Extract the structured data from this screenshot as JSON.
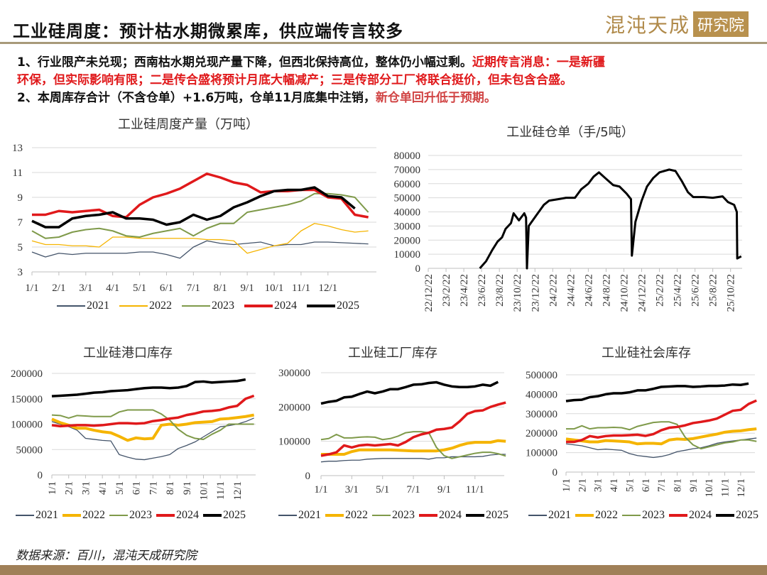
{
  "header": {
    "title": "工业硅周度：预计枯水期微累库，供应端传言较多",
    "logo_main": "混沌天成",
    "logo_box": "研究院"
  },
  "bullets": {
    "l1_black": "1、行业限产未兑现；西南枯水期兑现产量下降，但西北保持高位，整体仍小幅过剩。",
    "l1_red": "近期传言消息：一是新疆",
    "l2_red": "环保，但实际影响有限；二是传合盛将预计月底大幅减产；三是传部分工厂将联合挺价，但未包含合盛。",
    "l3_black": "2、本周库存合计（不含仓单）+1.6万吨，仓单11月底集中注销，",
    "l3_red": "新仓单回升低于预期。"
  },
  "footer": {
    "source": "数据来源：百川，混沌天成研究院"
  },
  "colors": {
    "2021": "#44546a",
    "2022": "#f5b400",
    "2023": "#7f9a4a",
    "2024": "#e0191b",
    "2025": "#000000"
  },
  "chart_data": [
    {
      "id": "c1",
      "type": "line",
      "title": "工业硅周度产量（万吨）",
      "ylim": [
        3,
        13
      ],
      "yticks": [
        "13",
        "11",
        "9",
        "7",
        "5",
        "3"
      ],
      "xticks": [
        "1/1",
        "2/1",
        "3/1",
        "4/1",
        "5/1",
        "6/1",
        "7/1",
        "8/1",
        "9/1",
        "10/1",
        "11/1",
        "12/1"
      ],
      "x_start": 0,
      "x_step": 0.5,
      "series": [
        {
          "name": "2021",
          "values": [
            4.6,
            4.2,
            4.5,
            4.4,
            4.5,
            4.5,
            4.5,
            4.5,
            4.6,
            4.6,
            4.4,
            4.1,
            5.0,
            5.5,
            5.3,
            5.2,
            5.3,
            5.4,
            5.1,
            5.2,
            5.2,
            5.4,
            5.4,
            5.35,
            5.3,
            5.25
          ]
        },
        {
          "name": "2022",
          "values": [
            5.5,
            5.2,
            5.2,
            5.1,
            5.1,
            5.0,
            5.8,
            5.8,
            5.7,
            5.7,
            5.7,
            5.7,
            5.7,
            5.6,
            5.6,
            5.5,
            4.5,
            4.8,
            5.1,
            5.3,
            6.3,
            6.9,
            6.7,
            6.4,
            6.2,
            6.3
          ]
        },
        {
          "name": "2023",
          "values": [
            6.3,
            5.7,
            5.8,
            6.2,
            6.4,
            6.5,
            6.3,
            5.9,
            5.8,
            6.1,
            6.3,
            6.5,
            5.9,
            6.5,
            6.9,
            6.9,
            7.8,
            8.0,
            8.2,
            8.4,
            8.7,
            9.3,
            9.3,
            9.2,
            9.0,
            7.8
          ]
        },
        {
          "name": "2024",
          "values": [
            7.6,
            7.6,
            7.9,
            7.8,
            7.9,
            8.0,
            7.5,
            7.4,
            8.4,
            9.0,
            9.3,
            9.7,
            10.3,
            10.9,
            10.6,
            10.2,
            10.0,
            9.4,
            9.5,
            9.5,
            9.6,
            9.6,
            9.0,
            8.9,
            7.6,
            7.4
          ]
        },
        {
          "name": "2025",
          "values": [
            7.1,
            6.6,
            6.6,
            7.3,
            7.5,
            7.6,
            7.8,
            7.3,
            7.3,
            7.2,
            6.8,
            7.0,
            7.6,
            7.2,
            7.5,
            8.2,
            8.6,
            9.1,
            9.5,
            9.6,
            9.6,
            9.8,
            9.1,
            9.0,
            8.1
          ]
        }
      ]
    },
    {
      "id": "c2",
      "type": "line",
      "title": "工业硅仓单（手/5吨）",
      "ylim": [
        0,
        80000
      ],
      "yticks": [
        "80000",
        "70000",
        "60000",
        "50000",
        "40000",
        "30000",
        "20000",
        "10000",
        "0"
      ],
      "xticks": [
        "22/12/22",
        "23/2/22",
        "23/4/22",
        "23/6/22",
        "23/8/22",
        "23/10/22",
        "23/12/22",
        "24/2/22",
        "24/4/22",
        "24/6/22",
        "24/8/22",
        "24/10/22",
        "24/12/22",
        "25/2/22",
        "25/4/22",
        "25/6/22",
        "25/8/22",
        "25/10/22"
      ],
      "xtick_step": 2,
      "series": [
        {
          "name": "仓单",
          "points": [
            [
              5.8,
              0
            ],
            [
              6.5,
              5000
            ],
            [
              7.2,
              13000
            ],
            [
              7.8,
              19000
            ],
            [
              8.3,
              22000
            ],
            [
              8.7,
              28000
            ],
            [
              9.3,
              32000
            ],
            [
              9.6,
              39000
            ],
            [
              10.2,
              34000
            ],
            [
              10.8,
              39000
            ],
            [
              11.0,
              36000
            ],
            [
              11.1,
              0
            ],
            [
              11.3,
              30000
            ],
            [
              12.2,
              38000
            ],
            [
              13,
              45000
            ],
            [
              13.6,
              48000
            ],
            [
              14.6,
              49000
            ],
            [
              15.5,
              50000
            ],
            [
              16.5,
              50000
            ],
            [
              17.2,
              56000
            ],
            [
              18,
              60000
            ],
            [
              18.6,
              65000
            ],
            [
              19.2,
              68000
            ],
            [
              19.9,
              64000
            ],
            [
              20.8,
              59000
            ],
            [
              21.5,
              58000
            ],
            [
              22.3,
              53000
            ],
            [
              22.8,
              49000
            ],
            [
              22.9,
              9000
            ],
            [
              23.3,
              33000
            ],
            [
              24,
              48000
            ],
            [
              24.6,
              58000
            ],
            [
              25.3,
              64000
            ],
            [
              26,
              68000
            ],
            [
              27.1,
              70000
            ],
            [
              27.8,
              69000
            ],
            [
              28.5,
              62000
            ],
            [
              29.2,
              54000
            ],
            [
              29.8,
              50500
            ],
            [
              31,
              50500
            ],
            [
              32,
              50000
            ],
            [
              33.1,
              51000
            ],
            [
              33.7,
              47000
            ],
            [
              34.4,
              45000
            ],
            [
              34.7,
              40000
            ],
            [
              34.75,
              7000
            ],
            [
              35.2,
              8500
            ]
          ]
        }
      ]
    },
    {
      "id": "c3",
      "type": "line",
      "title": "工业硅港口库存",
      "ylim": [
        0,
        200000
      ],
      "yticks": [
        "200000",
        "150000",
        "100000",
        "50000",
        "0"
      ],
      "xticks": [
        "1/1",
        "2/1",
        "3/1",
        "4/1",
        "5/1",
        "6/1",
        "7/1",
        "8/1",
        "9/1",
        "10/1",
        "11/1",
        "12/1"
      ],
      "x_start": 0,
      "x_step": 0.5,
      "unit": 1000,
      "series": [
        {
          "name": "2021",
          "values": [
            105,
            100,
            95,
            88,
            72,
            70,
            68,
            67,
            40,
            35,
            31,
            30,
            33,
            36,
            40,
            52,
            58,
            65,
            75,
            85,
            95,
            97,
            100,
            105,
            112
          ]
        },
        {
          "name": "2022",
          "values": [
            110,
            103,
            98,
            92,
            92,
            88,
            85,
            83,
            76,
            68,
            73,
            71,
            72,
            98,
            100,
            98,
            100,
            103,
            104,
            105,
            110,
            111,
            113,
            115,
            118
          ]
        },
        {
          "name": "2023",
          "values": [
            118,
            117,
            112,
            117,
            116,
            115,
            115,
            115,
            124,
            128,
            128,
            128,
            128,
            120,
            108,
            90,
            78,
            72,
            70,
            80,
            88,
            100,
            100,
            100,
            100
          ]
        },
        {
          "name": "2024",
          "values": [
            98,
            96,
            97,
            98,
            98,
            97,
            98,
            100,
            102,
            102,
            101,
            102,
            106,
            108,
            111,
            113,
            118,
            121,
            125,
            126,
            128,
            133,
            136,
            150,
            156
          ]
        },
        {
          "name": "2025",
          "values": [
            155,
            156,
            157,
            158,
            160,
            162,
            163,
            165,
            166,
            167,
            169,
            171,
            172,
            172,
            171,
            172,
            175,
            183,
            184,
            182,
            183,
            184,
            185,
            188
          ]
        }
      ]
    },
    {
      "id": "c4",
      "type": "line",
      "title": "工业硅工厂库存",
      "ylim": [
        0,
        300000
      ],
      "yticks": [
        "300000",
        "200000",
        "100000",
        "0"
      ],
      "xticks": [
        "1/1",
        "3/1",
        "5/1",
        "7/1",
        "9/1",
        "11/1"
      ],
      "xtick_step": 2,
      "x_start": 0,
      "x_step": 0.5,
      "unit": 1000,
      "series": [
        {
          "name": "2021",
          "values": [
            40,
            42,
            42,
            44,
            45,
            45,
            48,
            49,
            50,
            50,
            50,
            50,
            50,
            50,
            48,
            52,
            52,
            55,
            55,
            55,
            55,
            56,
            60,
            62,
            62
          ]
        },
        {
          "name": "2022",
          "values": [
            62,
            62,
            62,
            62,
            70,
            75,
            75,
            75,
            75,
            75,
            74,
            73,
            72,
            72,
            72,
            72,
            75,
            80,
            88,
            94,
            97,
            97,
            97,
            102,
            100
          ]
        },
        {
          "name": "2023",
          "values": [
            105,
            108,
            120,
            110,
            110,
            112,
            113,
            112,
            105,
            108,
            115,
            125,
            128,
            128,
            125,
            82,
            58,
            50,
            55,
            60,
            65,
            68,
            68,
            64,
            57
          ]
        },
        {
          "name": "2024",
          "values": [
            58,
            62,
            68,
            88,
            82,
            88,
            90,
            88,
            90,
            92,
            88,
            98,
            112,
            120,
            125,
            134,
            136,
            140,
            158,
            180,
            188,
            190,
            200,
            207,
            213
          ]
        },
        {
          "name": "2025",
          "values": [
            210,
            215,
            218,
            228,
            230,
            238,
            245,
            240,
            245,
            252,
            252,
            258,
            265,
            266,
            270,
            272,
            265,
            260,
            258,
            258,
            260,
            265,
            262,
            273
          ]
        }
      ]
    },
    {
      "id": "c5",
      "type": "line",
      "title": "工业硅社会库存",
      "ylim": [
        0,
        500000
      ],
      "yticks": [
        "500000",
        "400000",
        "300000",
        "200000",
        "100000",
        "0"
      ],
      "xticks": [
        "1/1",
        "2/1",
        "3/1",
        "4/1",
        "5/1",
        "6/1",
        "7/1",
        "8/1",
        "9/1",
        "10/1",
        "11/1",
        "12/1"
      ],
      "x_start": 0,
      "x_step": 0.5,
      "unit": 1000,
      "series": [
        {
          "name": "2021",
          "values": [
            145,
            140,
            135,
            125,
            115,
            118,
            115,
            112,
            95,
            85,
            80,
            75,
            80,
            90,
            105,
            112,
            120,
            125,
            135,
            148,
            155,
            160,
            165,
            170,
            175
          ]
        },
        {
          "name": "2022",
          "values": [
            170,
            165,
            160,
            155,
            155,
            162,
            160,
            158,
            155,
            145,
            148,
            148,
            145,
            165,
            170,
            168,
            172,
            180,
            188,
            195,
            205,
            210,
            212,
            218,
            222
          ]
        },
        {
          "name": "2023",
          "values": [
            222,
            222,
            238,
            222,
            228,
            228,
            230,
            228,
            218,
            235,
            245,
            255,
            258,
            258,
            245,
            180,
            140,
            120,
            130,
            140,
            150,
            155,
            165,
            165,
            158
          ]
        },
        {
          "name": "2024",
          "values": [
            155,
            155,
            165,
            185,
            178,
            185,
            188,
            188,
            190,
            192,
            186,
            195,
            215,
            228,
            232,
            240,
            252,
            258,
            265,
            275,
            295,
            315,
            320,
            350,
            368
          ]
        },
        {
          "name": "2025",
          "values": [
            365,
            370,
            372,
            385,
            390,
            400,
            405,
            405,
            410,
            420,
            420,
            428,
            438,
            440,
            442,
            442,
            438,
            440,
            443,
            443,
            445,
            450,
            448,
            455
          ]
        }
      ]
    }
  ]
}
